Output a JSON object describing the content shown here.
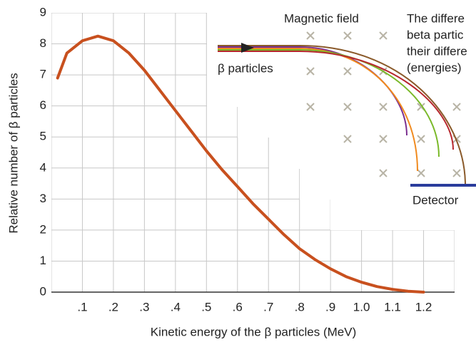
{
  "chart_data": {
    "type": "line",
    "xlabel": "Kinetic energy of the β particles (MeV)",
    "ylabel": "Relative number of β particles",
    "x": [
      0.02,
      0.05,
      0.1,
      0.15,
      0.2,
      0.25,
      0.3,
      0.35,
      0.4,
      0.45,
      0.5,
      0.55,
      0.6,
      0.65,
      0.7,
      0.75,
      0.8,
      0.85,
      0.9,
      0.95,
      1.0,
      1.05,
      1.1,
      1.15,
      1.2
    ],
    "values": [
      6.9,
      7.7,
      8.1,
      8.25,
      8.1,
      7.7,
      7.15,
      6.5,
      5.85,
      5.2,
      4.55,
      3.95,
      3.4,
      2.85,
      2.35,
      1.85,
      1.4,
      1.05,
      0.75,
      0.5,
      0.32,
      0.18,
      0.09,
      0.03,
      0
    ],
    "color": "#c8501e",
    "xlim": [
      0,
      1.3
    ],
    "ylim": [
      0,
      9
    ],
    "xticks": [
      {
        "value": 0.1,
        "label": ".1"
      },
      {
        "value": 0.2,
        "label": ".2"
      },
      {
        "value": 0.3,
        "label": ".3"
      },
      {
        "value": 0.4,
        "label": ".4"
      },
      {
        "value": 0.5,
        "label": ".5"
      },
      {
        "value": 0.6,
        "label": ".6"
      },
      {
        "value": 0.7,
        "label": ".7"
      },
      {
        "value": 0.8,
        "label": ".8"
      },
      {
        "value": 0.9,
        "label": ".9"
      },
      {
        "value": 1.0,
        "label": "1.0"
      },
      1.1,
      1.2
    ],
    "yticks": [
      0,
      1,
      2,
      3,
      4,
      5,
      6,
      7,
      8,
      9
    ],
    "grid": true
  },
  "diagram": {
    "field_label": "Magnetic field",
    "beam_label": "β particles",
    "detector_label": "Detector",
    "caption_lines": [
      "The differe",
      "beta partic",
      "their differe",
      "(energies)"
    ]
  }
}
